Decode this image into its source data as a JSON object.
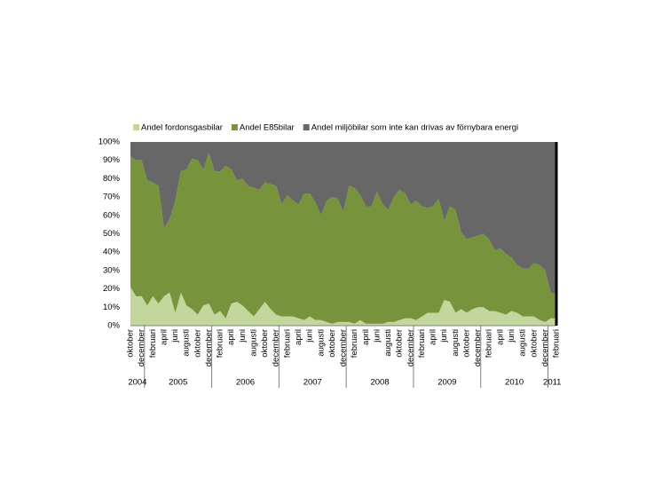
{
  "chart_data": {
    "type": "stacked-area",
    "categories": [
      "oktober",
      null,
      "december",
      null,
      "februari",
      null,
      "april",
      null,
      "juni",
      null,
      "augusti",
      null,
      "oktober",
      null,
      "december",
      null,
      "februari",
      null,
      "april",
      null,
      "juni",
      null,
      "augusti",
      null,
      "oktober",
      null,
      "december",
      null,
      "februari",
      null,
      "april",
      null,
      "juni",
      null,
      "augusti",
      null,
      "oktober",
      null,
      "december",
      null,
      "februari",
      null,
      "april",
      null,
      "juni",
      null,
      "augusti",
      null,
      "oktober",
      null,
      "december",
      null,
      "februari",
      null,
      "april",
      null,
      "juni",
      null,
      "augusti",
      null,
      "oktober",
      null,
      "december",
      null,
      "februari",
      null,
      "april",
      null,
      "juni",
      null,
      "augusti",
      null,
      "oktober",
      null,
      "december",
      null,
      "februari"
    ],
    "years": [
      "2004",
      "2005",
      "2006",
      "2007",
      "2008",
      "2009",
      "2010",
      "2011"
    ],
    "series": [
      {
        "name": "Andel fordonsgasbilar",
        "color": "#c3d69b",
        "values": [
          21,
          16,
          16,
          11,
          16,
          12,
          16,
          18,
          7,
          18,
          11,
          9,
          6,
          11,
          12,
          6,
          8,
          4,
          12,
          13,
          11,
          8,
          5,
          9,
          13,
          9,
          6,
          5,
          5,
          5,
          4,
          3,
          5,
          3,
          3,
          2,
          1,
          2,
          2,
          2,
          1,
          3,
          1,
          1,
          1,
          1,
          2,
          2,
          3,
          4,
          4,
          3,
          5,
          7,
          7,
          7,
          14,
          13,
          7,
          9,
          7,
          9,
          10,
          10,
          8,
          8,
          7,
          6,
          8,
          7,
          5,
          5,
          5,
          3,
          2,
          4,
          4
        ]
      },
      {
        "name": "Andel E85bilar",
        "color": "#77933c",
        "values": [
          71,
          74,
          74,
          68,
          62,
          64,
          37,
          40,
          61,
          66,
          74,
          82,
          84,
          74,
          82,
          78,
          76,
          83,
          73,
          66,
          69,
          68,
          70,
          65,
          65,
          68,
          70,
          61,
          66,
          63,
          62,
          69,
          67,
          64,
          57,
          66,
          69,
          67,
          60,
          74,
          74,
          68,
          64,
          64,
          72,
          65,
          61,
          68,
          71,
          68,
          62,
          65,
          60,
          57,
          58,
          62,
          43,
          52,
          56,
          42,
          40,
          39,
          39,
          40,
          39,
          33,
          35,
          33,
          29,
          26,
          26,
          26,
          29,
          30,
          28,
          14,
          13
        ]
      },
      {
        "name": "Andel miljöbilar som inte kan drivas av förnybara energi",
        "color": "#676767",
        "values": [
          8,
          10,
          10,
          21,
          22,
          24,
          47,
          42,
          32,
          16,
          15,
          9,
          10,
          15,
          6,
          16,
          16,
          13,
          15,
          21,
          20,
          24,
          25,
          26,
          22,
          23,
          24,
          34,
          29,
          32,
          34,
          28,
          28,
          33,
          40,
          32,
          30,
          31,
          38,
          24,
          25,
          29,
          35,
          35,
          27,
          34,
          37,
          30,
          26,
          28,
          34,
          32,
          35,
          36,
          35,
          31,
          43,
          35,
          37,
          49,
          53,
          52,
          51,
          50,
          53,
          59,
          58,
          61,
          63,
          67,
          69,
          69,
          66,
          67,
          70,
          82,
          83
        ]
      }
    ],
    "ylim": [
      0,
      100
    ],
    "yticks": [
      {
        "value": 0,
        "label": "0%"
      },
      {
        "value": 10,
        "label": "10%"
      },
      {
        "value": 20,
        "label": "20%"
      },
      {
        "value": 30,
        "label": "30%"
      },
      {
        "value": 40,
        "label": "40%"
      },
      {
        "value": 50,
        "label": "50%"
      },
      {
        "value": 60,
        "label": "60%"
      },
      {
        "value": 70,
        "label": "70%"
      },
      {
        "value": 80,
        "label": "80%"
      },
      {
        "value": 90,
        "label": "90%"
      },
      {
        "value": 100,
        "label": "100%"
      }
    ],
    "legend": "top"
  }
}
